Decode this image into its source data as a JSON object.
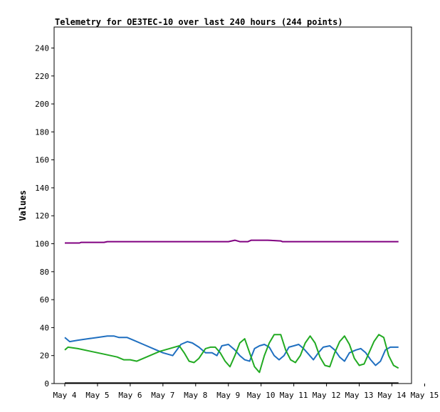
{
  "chart_data": {
    "type": "line",
    "title": "Telemetry for OE3TEC-10 over last 240 hours (244 points)",
    "xlabel": "",
    "ylabel": "Values",
    "ylim": [
      0,
      255
    ],
    "xlim": [
      0,
      11
    ],
    "yticks": [
      0,
      20,
      40,
      60,
      80,
      100,
      120,
      140,
      160,
      180,
      200,
      220,
      240
    ],
    "xticks": [
      "May 4",
      "May 5",
      "May 6",
      "May 7",
      "May 8",
      "May 9",
      "May 10",
      "May 11",
      "May 12",
      "May 13",
      "May 14",
      "May 15"
    ],
    "grid": false,
    "series": [
      {
        "color": "#800080",
        "x": [
          0.0,
          0.45,
          0.5,
          1.2,
          1.3,
          4.0,
          5.0,
          5.2,
          5.35,
          5.6,
          5.7,
          6.2,
          6.6,
          6.65,
          7.0,
          8.0,
          9.0,
          10.0,
          10.2
        ],
        "values": [
          100.5,
          100.5,
          101.0,
          101.0,
          101.5,
          101.5,
          101.5,
          102.5,
          101.5,
          101.5,
          102.5,
          102.5,
          102.0,
          101.5,
          101.5,
          101.5,
          101.5,
          101.5,
          101.5
        ]
      },
      {
        "color": "#000000",
        "x": [
          0.0,
          10.2
        ],
        "values": [
          0.3,
          0.3
        ]
      },
      {
        "color": "#1f6fc0",
        "x": [
          0.0,
          0.15,
          0.4,
          0.7,
          1.0,
          1.3,
          1.5,
          1.65,
          1.8,
          1.9,
          2.1,
          2.4,
          2.7,
          3.0,
          3.3,
          3.55,
          3.75,
          3.9,
          4.1,
          4.3,
          4.5,
          4.65,
          4.8,
          5.0,
          5.1,
          5.2,
          5.35,
          5.5,
          5.65,
          5.8,
          5.95,
          6.1,
          6.25,
          6.4,
          6.55,
          6.7,
          6.85,
          7.0,
          7.15,
          7.3,
          7.45,
          7.6,
          7.75,
          7.9,
          8.1,
          8.25,
          8.4,
          8.55,
          8.7,
          8.9,
          9.05,
          9.2,
          9.35,
          9.5,
          9.65,
          9.8,
          9.95,
          10.1,
          10.2
        ],
        "values": [
          33,
          30,
          31,
          32,
          33,
          34,
          34,
          33,
          33,
          33,
          31,
          28,
          25,
          22,
          20,
          28,
          30,
          29,
          26,
          22,
          22,
          20,
          27,
          28,
          26,
          24,
          20,
          17,
          16,
          25,
          27,
          28,
          26,
          20,
          17,
          20,
          26,
          27,
          28,
          25,
          21,
          17,
          22,
          26,
          27,
          24,
          19,
          16,
          22,
          24,
          25,
          22,
          17,
          13,
          16,
          24,
          26,
          26,
          26
        ]
      },
      {
        "color": "#22aa22",
        "x": [
          0.0,
          0.1,
          0.4,
          0.8,
          1.2,
          1.6,
          1.8,
          2.0,
          2.2,
          2.5,
          2.9,
          3.2,
          3.35,
          3.5,
          3.65,
          3.8,
          3.95,
          4.1,
          4.3,
          4.45,
          4.6,
          4.75,
          4.9,
          5.05,
          5.2,
          5.35,
          5.5,
          5.65,
          5.8,
          5.95,
          6.1,
          6.25,
          6.4,
          6.6,
          6.75,
          6.9,
          7.05,
          7.2,
          7.35,
          7.5,
          7.65,
          7.8,
          7.95,
          8.1,
          8.25,
          8.4,
          8.55,
          8.7,
          8.85,
          9.0,
          9.15,
          9.3,
          9.45,
          9.6,
          9.75,
          9.9,
          10.05,
          10.2
        ],
        "values": [
          24,
          26,
          25,
          23,
          21,
          19,
          17,
          17,
          16,
          19,
          23,
          25,
          26,
          27,
          22,
          16,
          15,
          18,
          25,
          26,
          26,
          22,
          16,
          12,
          20,
          29,
          32,
          22,
          12,
          8,
          20,
          29,
          35,
          35,
          24,
          17,
          15,
          20,
          29,
          34,
          29,
          19,
          13,
          12,
          22,
          30,
          34,
          28,
          18,
          13,
          14,
          22,
          30,
          35,
          33,
          20,
          13,
          11
        ]
      }
    ]
  }
}
